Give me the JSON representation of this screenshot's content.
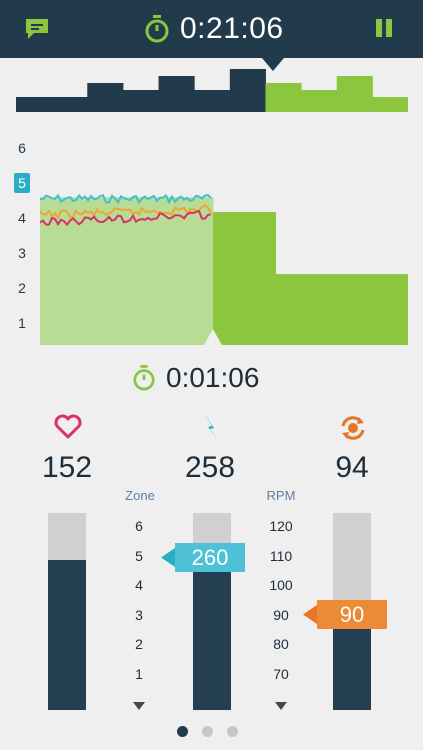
{
  "header": {
    "elapsed_time": "0:21:06",
    "accent": "#8cc63f",
    "bar_color": "#213a4c"
  },
  "workout_profile": {
    "blocks": [
      {
        "level": 1,
        "elapsed": true
      },
      {
        "level": 1,
        "elapsed": true
      },
      {
        "level": 3,
        "elapsed": true
      },
      {
        "level": 2,
        "elapsed": true
      },
      {
        "level": 4,
        "elapsed": true
      },
      {
        "level": 2,
        "elapsed": true
      },
      {
        "level": 5,
        "elapsed": true
      },
      {
        "level": 3,
        "elapsed": false
      },
      {
        "level": 2,
        "elapsed": false
      },
      {
        "level": 4,
        "elapsed": false
      },
      {
        "level": 1,
        "elapsed": false
      }
    ]
  },
  "zone_axis": {
    "labels": [
      "6",
      "5",
      "4",
      "3",
      "2",
      "1"
    ],
    "current_zone": "5"
  },
  "current_block": {
    "segments": [
      {
        "zone": 5,
        "fraction": 0.47,
        "completed": true
      },
      {
        "zone": 4.5,
        "fraction": 0.17,
        "completed": false
      },
      {
        "zone": 2.4,
        "fraction": 0.36,
        "completed": false
      }
    ],
    "series_colors": [
      "#3fbfd0",
      "#e8a83a",
      "#d92f6a"
    ]
  },
  "lap": {
    "time": "0:01:06"
  },
  "metrics": {
    "heart_rate": {
      "icon": "heart-icon",
      "value": "152",
      "level": 0.76,
      "color": "#d92f6a"
    },
    "power": {
      "icon": "lightning-icon",
      "value": "258",
      "level": 0.72,
      "color": "#2aaec4",
      "target": "260",
      "header": "Zone"
    },
    "cadence": {
      "icon": "cadence-icon",
      "value": "94",
      "level": 0.45,
      "color": "#e8742a",
      "target": "90",
      "header": "RPM"
    }
  },
  "zone_scale": [
    "6",
    "5",
    "4",
    "3",
    "2",
    "1"
  ],
  "rpm_scale": [
    "120",
    "110",
    "100",
    "90",
    "80",
    "70"
  ],
  "pager": {
    "pages": 3,
    "active": 0
  }
}
